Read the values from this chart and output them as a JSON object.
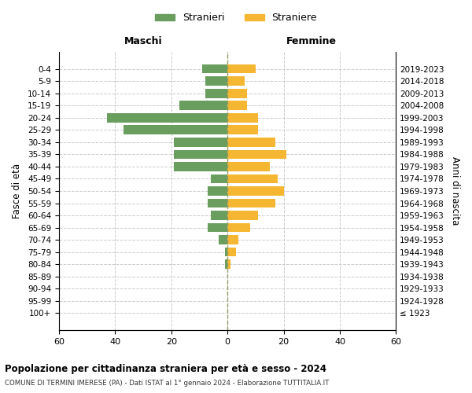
{
  "age_groups": [
    "100+",
    "95-99",
    "90-94",
    "85-89",
    "80-84",
    "75-79",
    "70-74",
    "65-69",
    "60-64",
    "55-59",
    "50-54",
    "45-49",
    "40-44",
    "35-39",
    "30-34",
    "25-29",
    "20-24",
    "15-19",
    "10-14",
    "5-9",
    "0-4"
  ],
  "birth_years": [
    "≤ 1923",
    "1924-1928",
    "1929-1933",
    "1934-1938",
    "1939-1943",
    "1944-1948",
    "1949-1953",
    "1954-1958",
    "1959-1963",
    "1964-1968",
    "1969-1973",
    "1974-1978",
    "1979-1983",
    "1984-1988",
    "1989-1993",
    "1994-1998",
    "1999-2003",
    "2004-2008",
    "2009-2013",
    "2014-2018",
    "2019-2023"
  ],
  "maschi": [
    0,
    0,
    0,
    0,
    1,
    1,
    3,
    7,
    6,
    7,
    7,
    6,
    19,
    19,
    19,
    37,
    43,
    17,
    8,
    8,
    9
  ],
  "femmine": [
    0,
    0,
    0,
    0,
    1,
    3,
    4,
    8,
    11,
    17,
    20,
    18,
    15,
    21,
    17,
    11,
    11,
    7,
    7,
    6,
    10
  ],
  "color_maschi": "#6a9e5e",
  "color_femmine": "#f5b731",
  "title1": "Popolazione per cittadinanza straniera per età e sesso - 2024",
  "title2": "COMUNE DI TERMINI IMERESE (PA) - Dati ISTAT al 1° gennaio 2024 - Elaborazione TUTTITALIA.IT",
  "label_maschi": "Stranieri",
  "label_femmine": "Straniere",
  "xlabel_left": "Maschi",
  "xlabel_right": "Femmine",
  "ylabel_left": "Fasce di età",
  "ylabel_right": "Anni di nascita",
  "xlim": 60,
  "background_color": "#ffffff",
  "grid_color": "#cccccc"
}
